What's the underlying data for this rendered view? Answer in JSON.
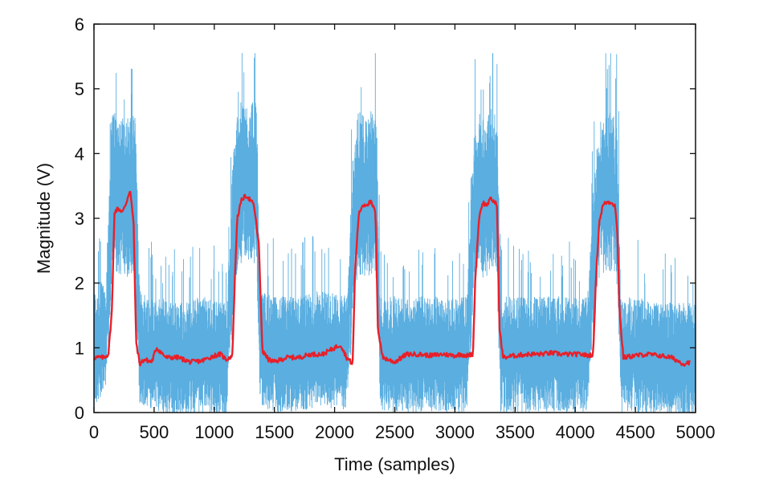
{
  "chart_data": {
    "type": "line",
    "title": "",
    "xlabel": "Time (samples)",
    "ylabel": "Magnitude (V)",
    "xlim": [
      0,
      5000
    ],
    "ylim": [
      0,
      6
    ],
    "x_ticks": [
      0,
      500,
      1000,
      1500,
      2000,
      2500,
      3000,
      3500,
      4000,
      4500,
      5000
    ],
    "x_tick_labels": [
      "0",
      "500",
      "1000",
      "1500",
      "2000",
      "2500",
      "3000",
      "3500",
      "4000",
      "4500",
      "5000"
    ],
    "y_ticks": [
      0,
      1,
      2,
      3,
      4,
      5,
      6
    ],
    "y_tick_labels": [
      "0",
      "1",
      "2",
      "3",
      "4",
      "5",
      "6"
    ],
    "grid": false,
    "legend": "none",
    "series": [
      {
        "color": "#5aaee0",
        "style": "noisy raw signal",
        "x": [
          0,
          100,
          150,
          200,
          300,
          340,
          380,
          500,
          700,
          900,
          1100,
          1170,
          1200,
          1250,
          1300,
          1350,
          1380,
          1500,
          1700,
          1900,
          2100,
          2160,
          2200,
          2250,
          2300,
          2350,
          2380,
          2500,
          2700,
          2900,
          3100,
          3160,
          3200,
          3250,
          3300,
          3350,
          3380,
          3500,
          3700,
          3900,
          4100,
          4180,
          4200,
          4250,
          4300,
          4350,
          4380,
          4500,
          4700,
          4900,
          5000
        ],
        "y": [
          1.0,
          1.2,
          3.5,
          3.4,
          3.3,
          3.5,
          1.0,
          0.9,
          0.8,
          0.9,
          0.8,
          3.1,
          3.5,
          3.6,
          3.5,
          3.6,
          1.0,
          0.9,
          0.9,
          1.0,
          0.9,
          3.0,
          3.4,
          3.3,
          3.4,
          3.3,
          0.9,
          0.9,
          0.9,
          0.9,
          0.9,
          3.2,
          3.4,
          3.3,
          3.5,
          3.4,
          0.9,
          0.9,
          0.9,
          0.9,
          0.9,
          3.1,
          3.3,
          3.4,
          3.4,
          3.2,
          0.9,
          0.9,
          0.8,
          0.8,
          0.8
        ],
        "min": 0,
        "max": 5.55
      },
      {
        "color": "#e8202a",
        "style": "smoothed signal",
        "x": [
          0,
          80,
          120,
          150,
          170,
          200,
          240,
          270,
          300,
          330,
          350,
          380,
          420,
          480,
          520,
          600,
          700,
          800,
          900,
          1000,
          1050,
          1100,
          1150,
          1170,
          1190,
          1230,
          1270,
          1300,
          1330,
          1370,
          1400,
          1450,
          1500,
          1600,
          1700,
          1800,
          1900,
          2000,
          2050,
          2100,
          2150,
          2170,
          2200,
          2230,
          2270,
          2300,
          2340,
          2360,
          2400,
          2500,
          2600,
          2700,
          2800,
          2900,
          3000,
          3050,
          3100,
          3150,
          3170,
          3200,
          3230,
          3260,
          3300,
          3330,
          3350,
          3370,
          3400,
          3500,
          3600,
          3700,
          3800,
          3900,
          4000,
          4050,
          4100,
          4150,
          4170,
          4200,
          4230,
          4260,
          4300,
          4330,
          4350,
          4370,
          4400,
          4500,
          4600,
          4700,
          4800,
          4900,
          4950
        ],
        "y": [
          0.85,
          0.85,
          0.9,
          1.6,
          3.1,
          3.15,
          3.1,
          3.25,
          3.45,
          2.9,
          1.1,
          0.75,
          0.82,
          0.78,
          1.0,
          0.85,
          0.85,
          0.78,
          0.8,
          0.88,
          0.9,
          0.82,
          0.88,
          2.0,
          3.0,
          3.3,
          3.35,
          3.28,
          3.2,
          2.6,
          0.95,
          0.82,
          0.78,
          0.85,
          0.85,
          0.9,
          0.9,
          1.0,
          1.05,
          0.85,
          0.75,
          2.2,
          3.05,
          3.2,
          3.22,
          3.25,
          3.1,
          1.3,
          0.85,
          0.78,
          0.9,
          0.9,
          0.88,
          0.9,
          0.88,
          0.9,
          0.88,
          0.9,
          2.1,
          3.0,
          3.25,
          3.2,
          3.3,
          3.25,
          3.2,
          1.3,
          0.85,
          0.88,
          0.9,
          0.9,
          0.92,
          0.9,
          0.9,
          0.9,
          0.88,
          0.9,
          2.0,
          2.95,
          3.2,
          3.25,
          3.25,
          3.2,
          2.8,
          1.5,
          0.85,
          0.88,
          0.9,
          0.88,
          0.85,
          0.75,
          0.78
        ]
      }
    ]
  }
}
